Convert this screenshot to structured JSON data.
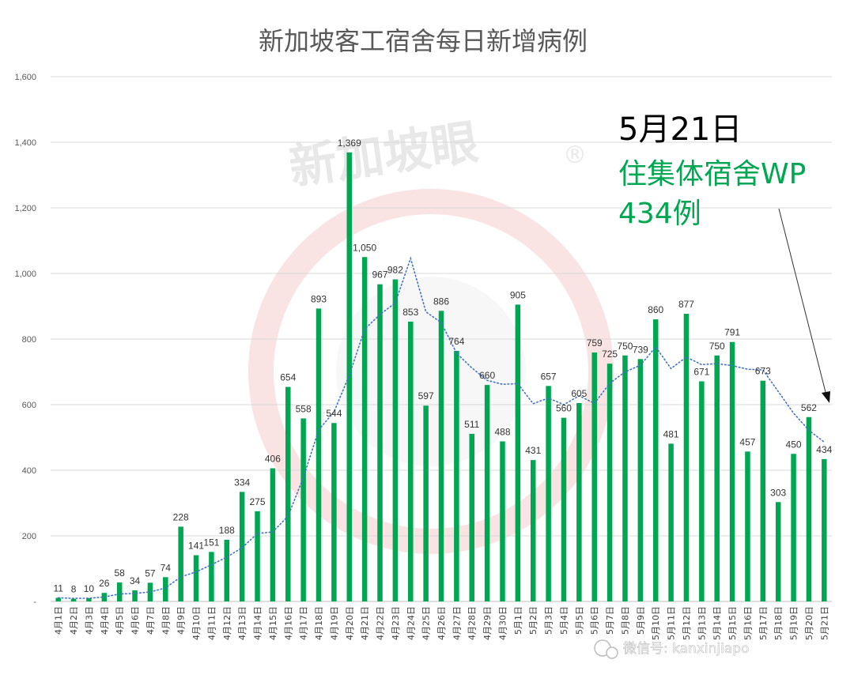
{
  "chart_data": {
    "type": "bar",
    "title": "新加坡客工宿舍每日新增病例",
    "categories": [
      "4月1日",
      "4月2日",
      "4月3日",
      "4月4日",
      "4月5日",
      "4月6日",
      "4月7日",
      "4月8日",
      "4月9日",
      "4月10日",
      "4月11日",
      "4月12日",
      "4月13日",
      "4月14日",
      "4月15日",
      "4月16日",
      "4月17日",
      "4月18日",
      "4月19日",
      "4月20日",
      "4月21日",
      "4月22日",
      "4月23日",
      "4月24日",
      "4月25日",
      "4月26日",
      "4月27日",
      "4月28日",
      "4月29日",
      "4月30日",
      "5月1日",
      "5月2日",
      "5月3日",
      "5月4日",
      "5月5日",
      "5月6日",
      "5月7日",
      "5月8日",
      "5月9日",
      "5月10日",
      "5月11日",
      "5月12日",
      "5月13日",
      "5月14日",
      "5月15日",
      "5月16日",
      "5月17日",
      "5月18日",
      "5月19日",
      "5月20日",
      "5月21日"
    ],
    "values": [
      11,
      8,
      10,
      26,
      58,
      34,
      57,
      74,
      228,
      141,
      151,
      188,
      334,
      275,
      406,
      654,
      558,
      893,
      544,
      1369,
      1050,
      967,
      982,
      853,
      597,
      886,
      764,
      511,
      660,
      488,
      905,
      431,
      657,
      560,
      605,
      759,
      725,
      750,
      739,
      860,
      481,
      877,
      671,
      750,
      791,
      457,
      673,
      303,
      450,
      562,
      434
    ],
    "value_labels": [
      "11",
      "8",
      "10",
      "26",
      "58",
      "34",
      "57",
      "74",
      "228",
      "141",
      "151",
      "188",
      "334",
      "275",
      "406",
      "654",
      "558",
      "893",
      "544",
      "1,369",
      "1,050",
      "967",
      "982",
      "853",
      "597",
      "886",
      "764",
      "511",
      "660",
      "488",
      "905",
      "431",
      "657",
      "560",
      "605",
      "759",
      "725",
      "750",
      "739",
      "860",
      "481",
      "877",
      "671",
      "750",
      "791",
      "457",
      "673",
      "303",
      "450",
      "562",
      "434"
    ],
    "moving_average": [
      11,
      9.5,
      9.7,
      13.8,
      22.6,
      24.5,
      29.1,
      41,
      75,
      90,
      112,
      135,
      164,
      207,
      212,
      260,
      378,
      523,
      578,
      690,
      830,
      875,
      910,
      1046,
      883,
      850,
      757,
      712,
      674,
      662,
      664,
      603,
      620,
      600,
      627,
      604,
      665,
      700,
      720,
      776,
      710,
      745,
      722,
      725,
      719,
      708,
      706,
      640,
      574,
      522,
      486
    ],
    "moving_average_style": "dotted",
    "y_ticks": [
      "-",
      "200",
      "400",
      "600",
      "800",
      "1,000",
      "1,200",
      "1,400",
      "1,600"
    ],
    "ylim": [
      0,
      1600
    ],
    "grid": true,
    "legend": "none",
    "bar_color": "#00a651",
    "trend_color": "#4472c4"
  },
  "callout": {
    "date": "5月21日",
    "line1": "住集体宿舍WP",
    "line2": "434例"
  },
  "watermark": {
    "text": "新加坡眼",
    "mark": "®"
  },
  "footer": {
    "label": "微信号: kanxinjiapo"
  }
}
